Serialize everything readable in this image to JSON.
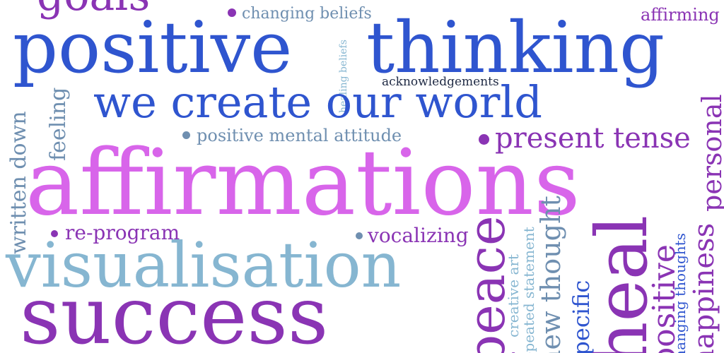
{
  "colors": {
    "blue": "#2f55cf",
    "lightblue": "#86b6d1",
    "slate": "#6f8fb0",
    "purple": "#8a34b4",
    "violet": "#c24bd6",
    "magenta": "#d865ea"
  },
  "words": {
    "goals": "goals",
    "positive_thinking_1": "positive",
    "positive_thinking_2": "thinking",
    "changing_beliefs": "changing beliefs",
    "affirming": "affirming",
    "healing_beliefs": "healing beliefs",
    "acknowledgements": "acknowledgements",
    "we_create_our_world": "we create our world",
    "positive_mental_attitude": "positive mental attitude",
    "present_tense": "present tense",
    "feeling": "feeling",
    "written_down": "written down",
    "personal": "personal",
    "affirmations": "affirmations",
    "re_program": "re-program",
    "vocalizing": "vocalizing",
    "visualisation": "visualisation",
    "success": "success",
    "peace": "peace",
    "creative_art": "creative art",
    "repeated_statement": "repeated statement",
    "new_thought": "new thought",
    "specific": "specific",
    "heal": "heal",
    "positive": "positive",
    "changing_thoughts": "changing thoughts",
    "happiness": "happiness"
  }
}
